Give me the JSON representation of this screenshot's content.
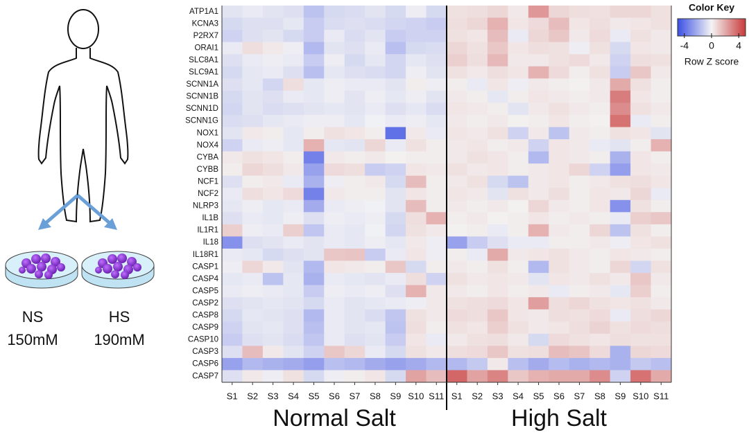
{
  "chart_data": {
    "type": "heatmap",
    "rows": [
      "ATP1A1",
      "KCNA3",
      "P2RX7",
      "ORAI1",
      "SLC8A1",
      "SLC9A1",
      "SCNN1A",
      "SCNN1B",
      "SCNN1D",
      "SCNN1G",
      "NOX1",
      "NOX4",
      "CYBA",
      "CYBB",
      "NCF1",
      "NCF2",
      "NLRP3",
      "IL1B",
      "IL1R1",
      "IL18",
      "IL18R1",
      "CASP1",
      "CASP4",
      "CASP5",
      "CASP2",
      "CASP8",
      "CASP9",
      "CASP10",
      "CASP3",
      "CASP6",
      "CASP7"
    ],
    "groups": [
      {
        "name": "Normal Salt",
        "columns": [
          "S1",
          "S2",
          "S3",
          "S4",
          "S5",
          "S6",
          "S7",
          "S8",
          "S9",
          "S10",
          "S11"
        ],
        "values": [
          [
            -0.5,
            -0.3,
            -0.5,
            -0.6,
            -1.5,
            -0.8,
            -0.7,
            -0.5,
            -0.8,
            -0.2,
            -0.8
          ],
          [
            -0.8,
            -0.6,
            -0.6,
            -0.4,
            -1.2,
            -0.7,
            -0.6,
            -0.7,
            -0.9,
            -1.0,
            -1.2
          ],
          [
            -1.0,
            -0.6,
            -0.5,
            -0.8,
            -1.2,
            -0.3,
            -0.7,
            -0.5,
            -1.2,
            -1.0,
            -1.0
          ],
          [
            -0.3,
            0.6,
            0.3,
            -0.2,
            -1.8,
            -0.5,
            -0.6,
            -0.3,
            -1.6,
            -0.8,
            -0.7
          ],
          [
            -0.6,
            -0.3,
            -0.2,
            -0.3,
            -1.2,
            -0.2,
            -0.8,
            -0.4,
            -0.9,
            -0.4,
            -0.6
          ],
          [
            -0.8,
            -0.4,
            -0.3,
            -0.6,
            -1.6,
            -0.4,
            -0.6,
            -0.7,
            -0.9,
            -0.2,
            -0.5
          ],
          [
            -0.6,
            -0.4,
            -0.9,
            0.6,
            -0.4,
            -0.2,
            -0.3,
            -0.3,
            -0.5,
            0.2,
            -0.2
          ],
          [
            -0.8,
            -0.5,
            -0.6,
            -0.3,
            -0.4,
            -0.2,
            -0.5,
            -0.2,
            -0.4,
            -0.2,
            -0.5
          ],
          [
            -0.9,
            -0.5,
            -0.7,
            -0.6,
            -0.5,
            -0.4,
            -0.5,
            -0.3,
            -0.6,
            -0.4,
            -0.7
          ],
          [
            -0.7,
            -0.6,
            -0.4,
            -0.3,
            -0.2,
            -0.2,
            -0.4,
            -0.1,
            -0.3,
            -0.2,
            -0.4
          ],
          [
            -0.5,
            0.3,
            0.2,
            -0.4,
            0.2,
            0.5,
            0.4,
            0.2,
            -4.0,
            0.3,
            -0.3
          ],
          [
            -1.0,
            -0.3,
            -0.2,
            -0.4,
            1.8,
            -0.4,
            -0.5,
            0.8,
            -0.3,
            0.5,
            0.2
          ],
          [
            0.3,
            0.5,
            0.4,
            0.2,
            -3.5,
            0.3,
            0.2,
            0.3,
            0.1,
            0.2,
            0.2
          ],
          [
            0.2,
            0.8,
            0.6,
            0.3,
            -2.5,
            0.7,
            0.6,
            -1.2,
            -1.0,
            0.4,
            0.3
          ],
          [
            -0.6,
            0.2,
            0.3,
            -0.3,
            -2.0,
            -0.2,
            0.2,
            0.3,
            -0.8,
            1.5,
            0.2
          ],
          [
            -0.3,
            0.6,
            0.4,
            0.7,
            -3.5,
            0.3,
            0.2,
            0.2,
            -0.5,
            0.4,
            0.2
          ],
          [
            -0.4,
            -0.2,
            -0.4,
            -0.3,
            -2.2,
            -0.3,
            -0.2,
            -0.1,
            -0.5,
            1.5,
            0.2
          ],
          [
            -0.6,
            -0.3,
            -0.4,
            -0.2,
            -0.6,
            -0.2,
            -0.3,
            -0.2,
            -0.8,
            0.6,
            1.8
          ],
          [
            1.0,
            -0.2,
            -0.3,
            1.0,
            -1.4,
            -0.3,
            -0.4,
            -0.1,
            -0.9,
            0.5,
            0.3
          ],
          [
            -3.0,
            -0.6,
            -0.5,
            -0.3,
            -0.5,
            -0.3,
            -0.4,
            -0.2,
            -0.4,
            0.3,
            -0.2
          ],
          [
            -0.3,
            -0.4,
            -0.8,
            -0.6,
            -0.5,
            1.2,
            1.3,
            -1.2,
            -0.3,
            0.4,
            -0.2
          ],
          [
            -0.2,
            0.8,
            0.3,
            -0.5,
            -1.8,
            0.4,
            0.3,
            0.2,
            1.2,
            -0.8,
            0.2
          ],
          [
            -0.4,
            -0.3,
            -1.5,
            -0.4,
            -2.0,
            -0.3,
            -0.4,
            -0.5,
            -0.3,
            0.6,
            -1.0
          ],
          [
            -0.3,
            -0.2,
            -0.3,
            -0.4,
            -1.2,
            -0.2,
            -0.3,
            -0.2,
            -0.6,
            1.8,
            0.3
          ],
          [
            -0.6,
            -0.5,
            -0.4,
            -0.5,
            -0.8,
            -0.3,
            -0.5,
            -0.4,
            -0.3,
            -0.2,
            0.3
          ],
          [
            -0.8,
            -0.4,
            -0.5,
            -0.6,
            -1.8,
            -0.3,
            -0.5,
            -0.7,
            -1.4,
            0.5,
            0.3
          ],
          [
            -1.0,
            -0.5,
            -0.4,
            -0.6,
            -1.6,
            -0.3,
            -0.5,
            -0.4,
            -1.5,
            0.6,
            0.2
          ],
          [
            -1.2,
            -0.6,
            -0.5,
            -0.7,
            -1.4,
            -0.3,
            -0.6,
            -0.5,
            -1.2,
            0.4,
            -0.3
          ],
          [
            -0.6,
            1.5,
            0.3,
            -0.5,
            -1.0,
            1.2,
            0.8,
            -0.3,
            -0.8,
            0.5,
            0.3
          ],
          [
            -2.5,
            -1.8,
            -2.0,
            -2.2,
            -2.6,
            -1.6,
            -1.8,
            -2.2,
            -2.5,
            -2.2,
            -1.8
          ],
          [
            -0.6,
            0.3,
            -0.2,
            0.5,
            -0.8,
            -0.2,
            0.2,
            0.4,
            -0.8,
            2.2,
            1.5
          ]
        ]
      },
      {
        "name": "High Salt",
        "columns": [
          "S1",
          "S2",
          "S3",
          "S4",
          "S5",
          "S6",
          "S7",
          "S8",
          "S9",
          "S10",
          "S11"
        ],
        "values": [
          [
            0.5,
            0.6,
            0.8,
            0.3,
            2.5,
            0.8,
            0.6,
            0.5,
            0.8,
            0.8,
            0.5
          ],
          [
            0.6,
            0.8,
            1.8,
            0.4,
            0.7,
            1.5,
            0.4,
            0.6,
            0.3,
            0.4,
            0.5
          ],
          [
            0.5,
            0.4,
            1.5,
            -0.3,
            0.8,
            1.2,
            0.3,
            0.7,
            -0.3,
            0.5,
            0.3
          ],
          [
            0.8,
            0.5,
            1.2,
            0.4,
            0.6,
            0.5,
            -0.2,
            0.5,
            -0.8,
            0.4,
            0.3
          ],
          [
            1.0,
            0.6,
            1.6,
            0.3,
            0.3,
            0.5,
            0.7,
            0.3,
            -1.0,
            0.6,
            0.5
          ],
          [
            0.5,
            0.3,
            0.6,
            0.4,
            1.8,
            0.7,
            0.2,
            0.5,
            -1.2,
            1.2,
            0.3
          ],
          [
            0.2,
            -0.3,
            0.4,
            -0.2,
            0.3,
            0.2,
            0.1,
            0.3,
            2.0,
            0.5,
            0.2
          ],
          [
            0.3,
            0.2,
            -0.4,
            0.2,
            0.4,
            0.3,
            0.2,
            0.3,
            3.2,
            0.4,
            0.2
          ],
          [
            0.4,
            0.3,
            0.2,
            -0.5,
            0.3,
            0.5,
            0.3,
            0.2,
            2.8,
            0.5,
            0.3
          ],
          [
            0.3,
            0.2,
            0.3,
            0.1,
            0.2,
            0.4,
            0.2,
            0.1,
            3.5,
            -0.3,
            0.2
          ],
          [
            0.4,
            0.3,
            0.5,
            -1.0,
            0.3,
            -1.5,
            0.3,
            0.2,
            0.5,
            0.4,
            -0.5
          ],
          [
            0.3,
            0.4,
            0.2,
            0.3,
            -1.0,
            0.4,
            0.3,
            -0.3,
            -0.5,
            0.2,
            1.8
          ],
          [
            0.3,
            0.5,
            0.4,
            0.2,
            -1.8,
            0.4,
            0.3,
            0.2,
            -2.0,
            0.4,
            0.2
          ],
          [
            0.5,
            0.3,
            0.4,
            0.2,
            0.3,
            0.4,
            0.8,
            -1.0,
            -2.6,
            0.4,
            0.3
          ],
          [
            0.3,
            0.5,
            -0.8,
            -1.5,
            0.3,
            0.4,
            0.2,
            0.3,
            0.5,
            0.6,
            0.4
          ],
          [
            0.4,
            0.3,
            -0.5,
            0.5,
            0.3,
            0.6,
            0.2,
            0.4,
            0.3,
            0.8,
            -0.3
          ],
          [
            0.3,
            0.2,
            0.3,
            0.1,
            0.8,
            0.3,
            0.2,
            0.4,
            -3.0,
            0.5,
            0.2
          ],
          [
            0.2,
            0.3,
            0.1,
            0.2,
            0.4,
            0.2,
            0.3,
            0.2,
            -0.3,
            1.0,
            1.2
          ],
          [
            0.1,
            0.2,
            -0.3,
            0.2,
            1.8,
            0.3,
            0.2,
            0.8,
            -1.5,
            0.5,
            0.2
          ],
          [
            -2.5,
            -1.2,
            -0.6,
            -0.3,
            -0.3,
            0.2,
            0.2,
            0.3,
            -0.2,
            0.4,
            0.5
          ],
          [
            0.2,
            -0.3,
            2.0,
            0.3,
            0.4,
            0.5,
            0.3,
            0.2,
            0.4,
            0.3,
            0.2
          ],
          [
            0.3,
            0.2,
            0.5,
            0.2,
            -1.8,
            0.5,
            0.3,
            0.2,
            0.8,
            -0.9,
            0.5
          ],
          [
            0.5,
            0.3,
            0.4,
            0.3,
            -0.5,
            0.4,
            0.3,
            0.5,
            0.3,
            1.2,
            0.3
          ],
          [
            0.3,
            0.2,
            0.4,
            0.2,
            0.3,
            -0.3,
            0.2,
            0.3,
            -0.4,
            1.0,
            0.2
          ],
          [
            0.5,
            0.6,
            0.7,
            0.4,
            2.3,
            0.6,
            0.8,
            0.5,
            0.4,
            0.5,
            0.3
          ],
          [
            0.7,
            0.6,
            1.2,
            0.4,
            0.3,
            0.6,
            0.5,
            0.7,
            -0.3,
            0.6,
            0.8
          ],
          [
            0.5,
            0.4,
            1.0,
            0.5,
            0.3,
            0.4,
            0.6,
            0.9,
            0.5,
            0.7,
            0.6
          ],
          [
            0.3,
            0.5,
            0.6,
            0.3,
            -0.8,
            0.7,
            0.5,
            0.4,
            0.6,
            0.5,
            0.5
          ],
          [
            0.6,
            0.7,
            1.2,
            0.5,
            0.6,
            1.5,
            1.3,
            0.7,
            -2.0,
            0.8,
            0.7
          ],
          [
            -1.8,
            -1.3,
            0.3,
            -1.6,
            -2.2,
            -1.7,
            -2.0,
            -1.8,
            -2.0,
            -1.3,
            -1.6
          ],
          [
            3.8,
            2.2,
            3.0,
            1.2,
            1.8,
            2.0,
            2.0,
            2.8,
            -1.0,
            3.5,
            2.0
          ]
        ]
      }
    ],
    "colorbar": {
      "title": "Color Key",
      "label": "Row Z score",
      "lim": [
        -5,
        5
      ],
      "ticks": [
        -4,
        0,
        4
      ]
    },
    "colors": {
      "low": "#3b4fe4",
      "mid": "#f4f4f4",
      "high": "#c93a3a"
    }
  },
  "illustration": {
    "conditions": [
      {
        "name": "NS",
        "concentration": "150mM"
      },
      {
        "name": "HS",
        "concentration": "190mM"
      }
    ]
  }
}
